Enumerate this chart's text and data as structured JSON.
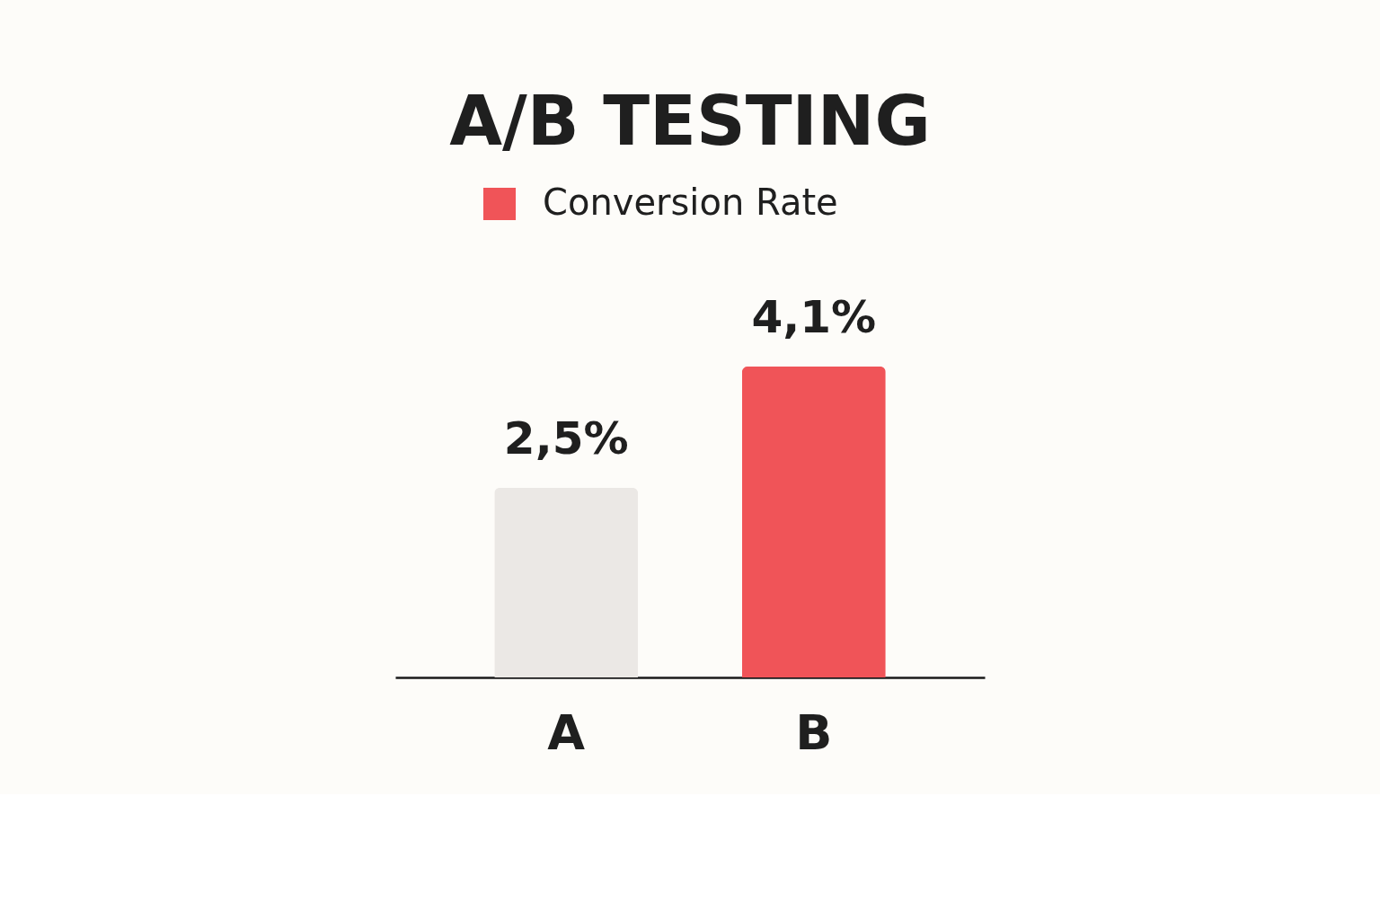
{
  "chart_data": {
    "type": "bar",
    "title": "A/B TESTING",
    "categories": [
      "A",
      "B"
    ],
    "series": [
      {
        "name": "Conversion Rate",
        "color": "#f05458",
        "colors": [
          "#ebe8e5",
          "#f05458"
        ],
        "values": [
          2.5,
          4.1
        ],
        "value_labels": [
          "2,5%",
          "4,1%"
        ]
      }
    ],
    "legend": "top",
    "grid": false
  }
}
